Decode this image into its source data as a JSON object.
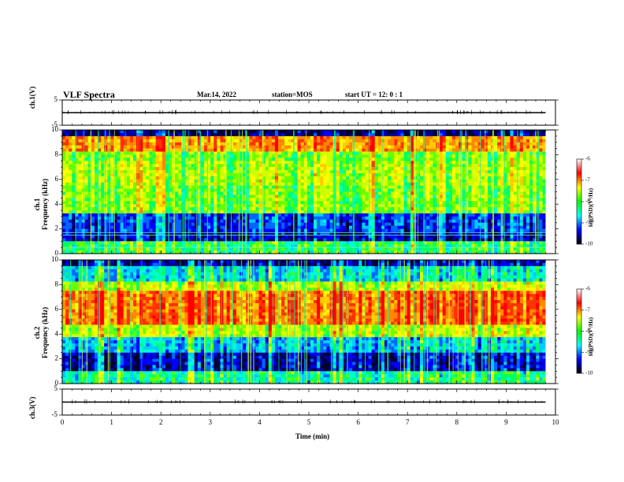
{
  "header": {
    "title": "VLF Spectra",
    "date": "Mar.14, 2022",
    "station": "station=MOS",
    "start": "start  UT =   12: 0  : 1"
  },
  "panels": {
    "ch1_voltage_label": "ch.1(V)",
    "ch1_voltage_ticks": [
      "5",
      "-5"
    ],
    "ch1_freq_label": "ch.1\nFrequency (kHz)",
    "ch2_freq_label": "ch.2\nFrequency (kHz)",
    "ch3_voltage_label": "ch.3(V)",
    "ch3_voltage_ticks": [
      "5",
      "-5"
    ],
    "freq_ticks": [
      "0",
      "2",
      "4",
      "6",
      "8",
      "10"
    ]
  },
  "colorbar": {
    "label": "log(PSD)(V²/Hz)",
    "ticks": [
      "-6",
      "-7",
      "-8",
      "-9",
      "-10"
    ],
    "colors": [
      "#ffffff",
      "#ff0000",
      "#ffff00",
      "#00ff00",
      "#00ffff",
      "#0000ff",
      "#000000"
    ]
  },
  "xaxis": {
    "label": "Time  (min)",
    "ticks": [
      "0",
      "1",
      "2",
      "3",
      "4",
      "5",
      "6",
      "7",
      "8",
      "9",
      "10"
    ]
  },
  "chart_data": [
    {
      "type": "line",
      "title": "ch.1(V)",
      "xlabel": "",
      "ylabel": "ch.1(V)",
      "xlim": [
        0,
        10
      ],
      "ylim": [
        -5,
        5
      ],
      "series": [
        {
          "x": [
            0,
            9.8
          ],
          "y": [
            0,
            0
          ]
        }
      ]
    },
    {
      "type": "heatmap",
      "ylabel": "Frequency (kHz)",
      "xlim": [
        0,
        10
      ],
      "ylim": [
        0,
        10
      ],
      "data_extent_min": 9.8,
      "color_range": [
        -10,
        -6
      ]
    },
    {
      "type": "heatmap",
      "ylabel": "Frequency (kHz)",
      "xlim": [
        0,
        10
      ],
      "ylim": [
        0,
        10
      ],
      "data_extent_min": 9.8,
      "color_range": [
        -10,
        -6
      ]
    },
    {
      "type": "line",
      "title": "ch.3(V)",
      "ylabel": "ch.3(V)",
      "xlim": [
        0,
        10
      ],
      "ylim": [
        -5,
        5
      ],
      "series": [
        {
          "x": [
            0,
            9.8
          ],
          "y": [
            0,
            0
          ]
        }
      ]
    }
  ]
}
